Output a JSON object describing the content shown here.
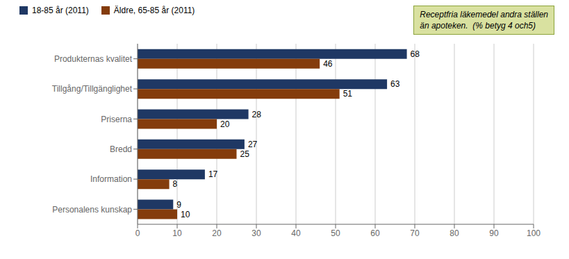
{
  "chart_data": {
    "type": "bar",
    "orientation": "horizontal",
    "categories": [
      "Produkternas kvalitet",
      "Tillgång/Tillgänglighet",
      "Priserna",
      "Bredd",
      "Information",
      "Personalens kunskap"
    ],
    "series": [
      {
        "name": "18-85 år (2011)",
        "color": "#1F3864",
        "values": [
          68,
          63,
          28,
          27,
          17,
          9
        ]
      },
      {
        "name": "Äldre, 65-85 år (2011)",
        "color": "#843C0C",
        "values": [
          46,
          51,
          20,
          25,
          8,
          10
        ]
      }
    ],
    "xlim": [
      0,
      100
    ],
    "xticks": [
      0,
      10,
      20,
      30,
      40,
      50,
      60,
      70,
      80,
      90,
      100
    ],
    "grid": true,
    "legend": "upper left",
    "data_labels": true,
    "annotation": "Receptfria läkemedel andra ställen\nän apoteken.  (% betyg 4 och5)"
  }
}
